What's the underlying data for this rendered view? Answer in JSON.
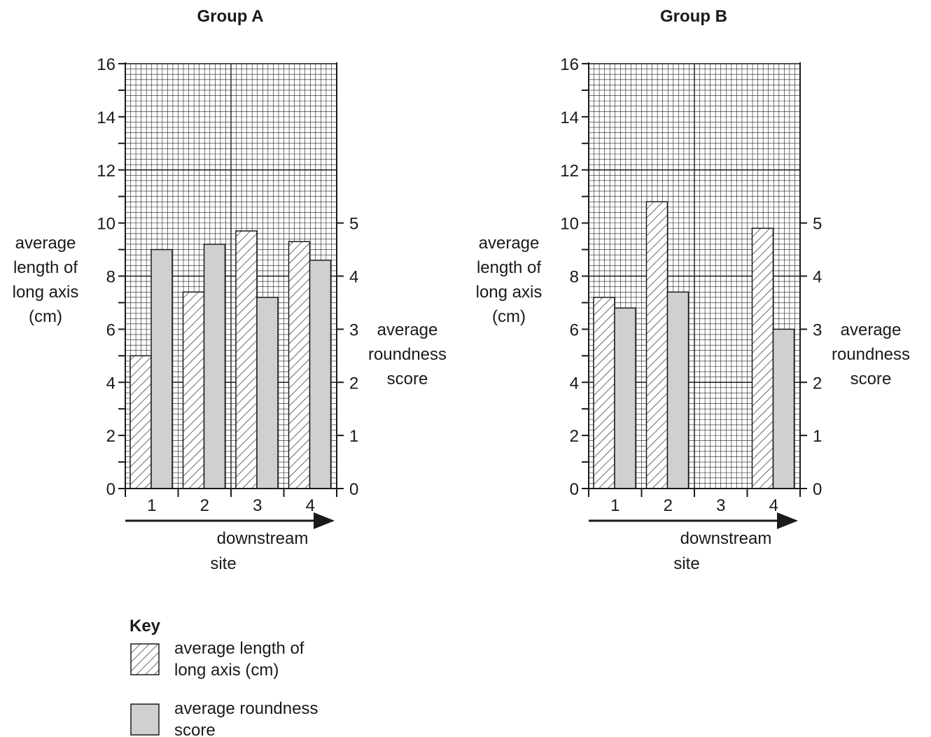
{
  "chart_data": [
    {
      "type": "bar",
      "title": "Group A",
      "categories": [
        "1",
        "2",
        "3",
        "4"
      ],
      "xlabel": [
        "downstream",
        "site"
      ],
      "ylabel": [
        "average",
        "length of",
        "long axis",
        "(cm)"
      ],
      "y2label": [
        "average",
        "roundness",
        "score"
      ],
      "ylim": [
        0,
        16
      ],
      "y2lim": [
        0,
        5
      ],
      "yticks": [
        "0",
        "2",
        "4",
        "6",
        "8",
        "10",
        "12",
        "14",
        "16"
      ],
      "y2ticks": [
        "0",
        "1",
        "2",
        "3",
        "4",
        "5"
      ],
      "grid": true,
      "series": [
        {
          "key": "length",
          "values": [
            5.0,
            7.4,
            9.7,
            9.3
          ]
        },
        {
          "key": "roundness",
          "values": [
            4.5,
            4.6,
            3.6,
            4.3
          ]
        }
      ]
    },
    {
      "type": "bar",
      "title": "Group B",
      "categories": [
        "1",
        "2",
        "3",
        "4"
      ],
      "xlabel": [
        "downstream",
        "site"
      ],
      "ylabel": [
        "average",
        "length of",
        "long axis",
        "(cm)"
      ],
      "y2label": [
        "average",
        "roundness",
        "score"
      ],
      "ylim": [
        0,
        16
      ],
      "y2lim": [
        0,
        5
      ],
      "yticks": [
        "0",
        "2",
        "4",
        "6",
        "8",
        "10",
        "12",
        "14",
        "16"
      ],
      "y2ticks": [
        "0",
        "1",
        "2",
        "3",
        "4",
        "5"
      ],
      "grid": true,
      "series": [
        {
          "key": "length",
          "values": [
            7.2,
            10.8,
            null,
            9.8
          ]
        },
        {
          "key": "roundness",
          "values": [
            3.4,
            3.7,
            null,
            3.0
          ]
        }
      ]
    }
  ],
  "legend": {
    "title": "Key",
    "items": [
      {
        "key": "length",
        "lines": [
          "average length of",
          "long axis (cm)"
        ]
      },
      {
        "key": "roundness",
        "lines": [
          "average roundness",
          "score"
        ]
      }
    ]
  },
  "colors": {
    "roundness_fill": "#d0d0d0",
    "line": "#1a1a1a",
    "grid": "#1a1a1a",
    "background": "#ffffff"
  }
}
